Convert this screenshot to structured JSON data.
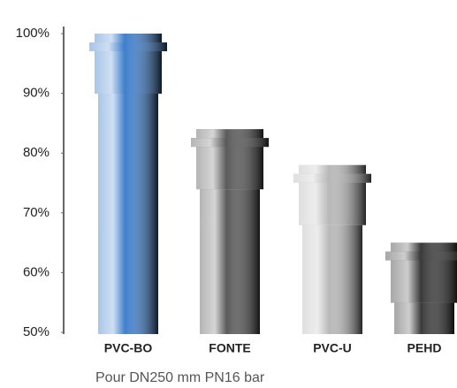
{
  "chart_data": {
    "type": "bar",
    "subtitle": "Pour DN250 mm PN16 bar",
    "categories": [
      "PVC-BO",
      "FONTE",
      "PVC-U",
      "PEHD"
    ],
    "values": [
      100,
      84,
      78,
      65
    ],
    "colors": [
      "#3f7fcc",
      "#5a5a5a",
      "#b8b8b8",
      "#3a3a3a"
    ],
    "ylim": [
      50,
      100
    ],
    "yticks": [
      {
        "value": 50,
        "label": "50%"
      },
      {
        "value": 60,
        "label": "60%"
      },
      {
        "value": 70,
        "label": "70%"
      },
      {
        "value": 80,
        "label": "80%"
      },
      {
        "value": 90,
        "label": "90%"
      },
      {
        "value": 100,
        "label": "100%"
      }
    ]
  }
}
